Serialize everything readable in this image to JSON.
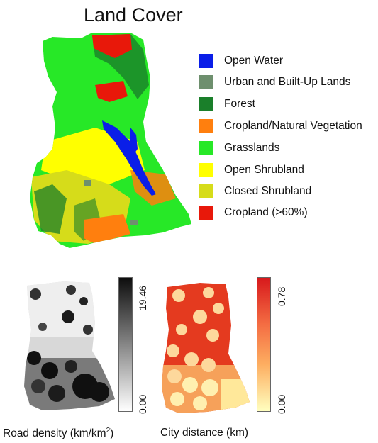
{
  "title": "Land Cover",
  "legend": [
    {
      "label": "Open Water",
      "color": "#0a1ee8"
    },
    {
      "label": "Urban and Built-Up Lands",
      "color": "#6e8f6e"
    },
    {
      "label": "Forest",
      "color": "#1a7f2a"
    },
    {
      "label": "Cropland/Natural Vegetation",
      "color": "#ff7f0e"
    },
    {
      "label": "Grasslands",
      "color": "#27e827"
    },
    {
      "label": "Open Shrubland",
      "color": "#ffff00"
    },
    {
      "label": "Closed Shrubland",
      "color": "#d6dc1a"
    },
    {
      "label": "Cropland (>60%)",
      "color": "#e8180a"
    }
  ],
  "road_density": {
    "caption_main": "Road density (km/km",
    "caption_sup": "2",
    "caption_end": ")",
    "max_label": "19.46",
    "min_label": "0.00"
  },
  "city_distance": {
    "caption": "City distance (km)",
    "max_label": "0.78",
    "min_label": "0.00"
  }
}
